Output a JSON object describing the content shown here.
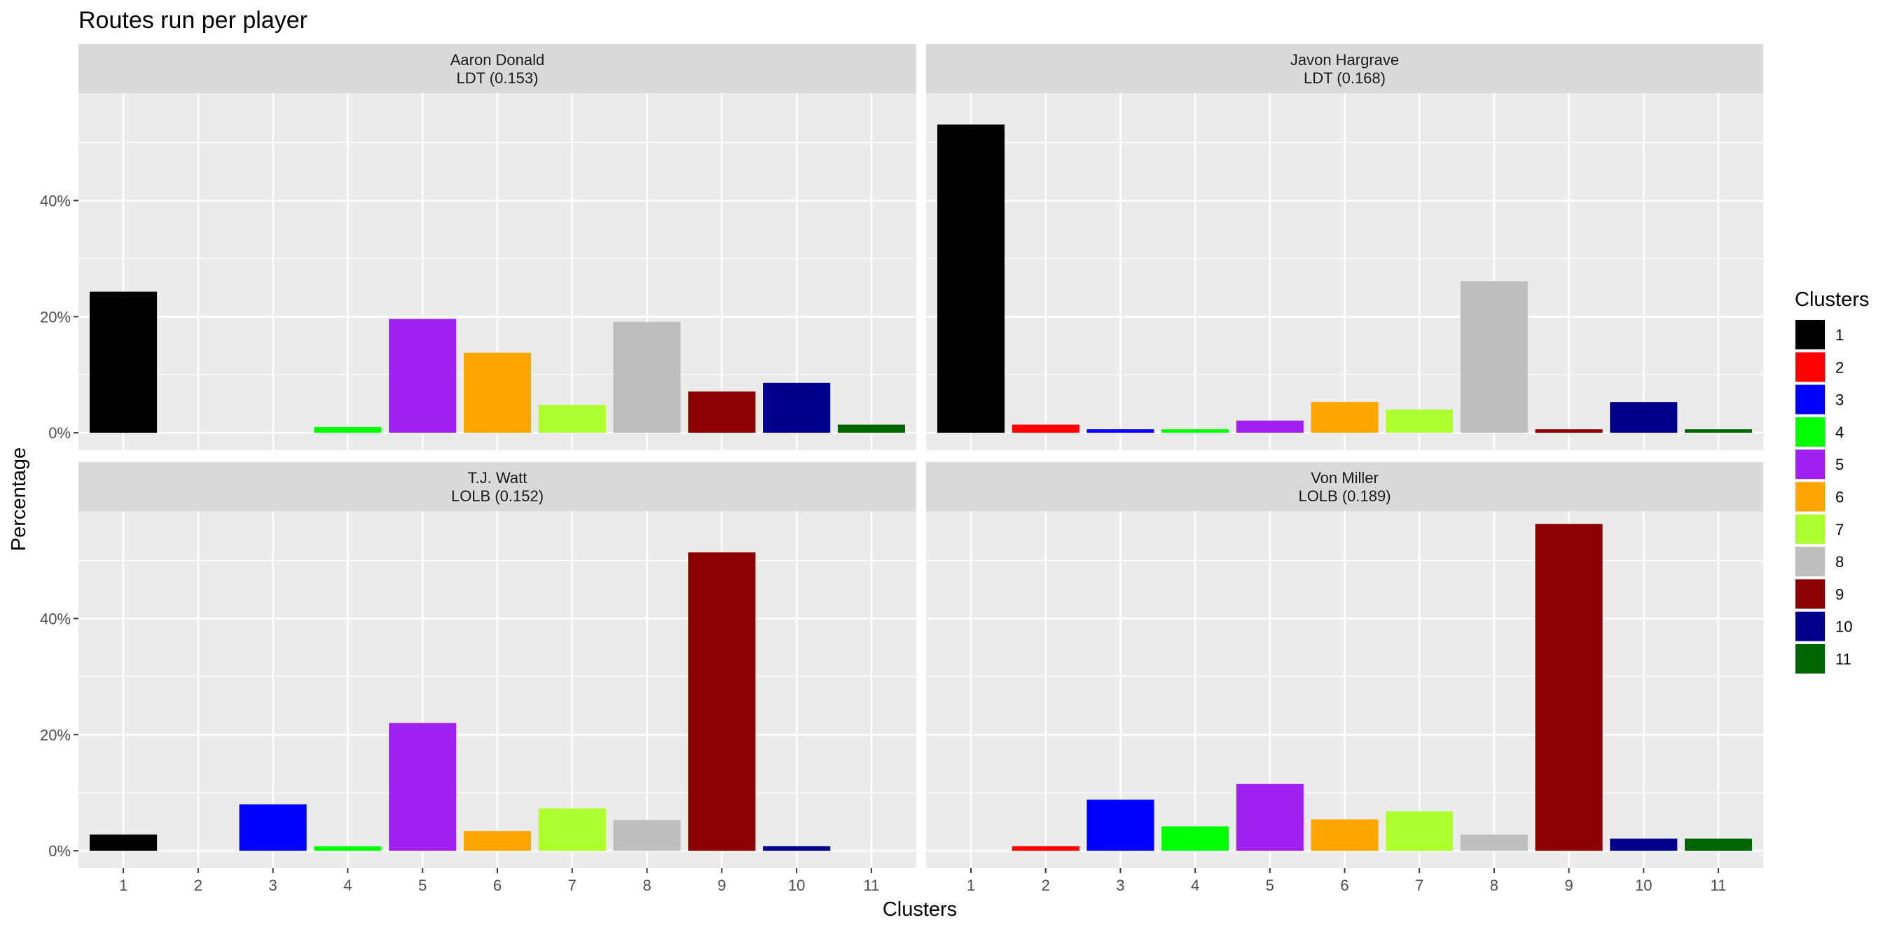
{
  "chart_data": {
    "type": "bar",
    "title": "Routes run per player",
    "xlabel": "Clusters",
    "ylabel": "Percentage",
    "categories": [
      "1",
      "2",
      "3",
      "4",
      "5",
      "6",
      "7",
      "8",
      "9",
      "10",
      "11"
    ],
    "y_ticks": [
      {
        "value": 0,
        "label": "0%"
      },
      {
        "value": 20,
        "label": "20%"
      },
      {
        "value": 40,
        "label": "40%"
      }
    ],
    "ylim": [
      -3,
      58.5
    ],
    "grid": true,
    "legend": {
      "title": "Clusters",
      "position": "right",
      "items": [
        {
          "label": "1",
          "color": "#000000"
        },
        {
          "label": "2",
          "color": "#FF0000"
        },
        {
          "label": "3",
          "color": "#0000FF"
        },
        {
          "label": "4",
          "color": "#00FF00"
        },
        {
          "label": "5",
          "color": "#A020F0"
        },
        {
          "label": "6",
          "color": "#FFA500"
        },
        {
          "label": "7",
          "color": "#ADFF2F"
        },
        {
          "label": "8",
          "color": "#BEBEBE"
        },
        {
          "label": "9",
          "color": "#8B0000"
        },
        {
          "label": "10",
          "color": "#00008B"
        },
        {
          "label": "11",
          "color": "#006400"
        }
      ]
    },
    "panels": [
      {
        "name": "Aaron Donald",
        "subtitle": "LDT (0.153)",
        "values": [
          24.3,
          0,
          0,
          1.0,
          19.6,
          13.8,
          4.8,
          19.1,
          7.1,
          8.6,
          1.4
        ]
      },
      {
        "name": "Javon Hargrave",
        "subtitle": "LDT (0.168)",
        "values": [
          53.1,
          1.4,
          0.6,
          0.6,
          2.1,
          5.3,
          4.0,
          26.1,
          0.6,
          5.3,
          0.6
        ]
      },
      {
        "name": "T.J. Watt",
        "subtitle": "LOLB (0.152)",
        "values": [
          2.8,
          0,
          8.0,
          0.8,
          22.0,
          3.4,
          7.3,
          5.3,
          51.4,
          0.8,
          0
        ]
      },
      {
        "name": "Von Miller",
        "subtitle": "LOLB (0.189)",
        "values": [
          0,
          0.8,
          8.8,
          4.2,
          11.5,
          5.4,
          6.8,
          2.8,
          56.3,
          2.1,
          2.1
        ]
      }
    ]
  }
}
